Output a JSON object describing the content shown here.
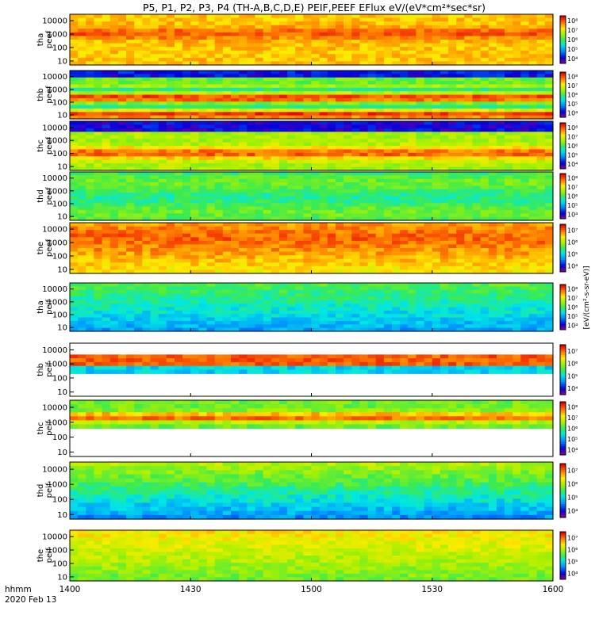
{
  "chart_data": {
    "type": "heatmap",
    "title": "P5, P1, P2, P3, P4 (TH-A,B,C,D,E) PEIF,PEEF EFlux eV/(eV*cm²*sec*sr)",
    "xlabel_lines": [
      "hhmm",
      "2020 Feb 13"
    ],
    "x_ticks": [
      "1400",
      "1430",
      "1500",
      "1530",
      "1600"
    ],
    "x_range_minutes": [
      0,
      120
    ],
    "y_ticks": [
      "10",
      "100",
      "1000",
      "10000"
    ],
    "y_scale": "log",
    "y_range_eV": [
      5,
      30000
    ],
    "colorbar_units": "[eV/(cm²-s-sr-eV)]",
    "panels": [
      {
        "name": "tha peef",
        "probe": "tha",
        "species": "peef",
        "colorbar_ticks": [
          "10⁴",
          "10⁵",
          "10⁶",
          "10⁷",
          "10⁸"
        ]
      },
      {
        "name": "thb peef",
        "probe": "thb",
        "species": "peef",
        "colorbar_ticks": [
          "10⁴",
          "10⁵",
          "10⁶",
          "10⁷",
          "10⁸"
        ]
      },
      {
        "name": "thc peef",
        "probe": "thc",
        "species": "peef",
        "colorbar_ticks": [
          "10⁴",
          "10⁵",
          "10⁶",
          "10⁷",
          "10⁸"
        ]
      },
      {
        "name": "thd peef",
        "probe": "thd",
        "species": "peef",
        "colorbar_ticks": [
          "10⁴",
          "10⁵",
          "10⁶",
          "10⁷",
          "10⁸"
        ]
      },
      {
        "name": "the peef",
        "probe": "the",
        "species": "peef",
        "colorbar_ticks": [
          "10⁴",
          "10⁵",
          "10⁶",
          "10⁷"
        ]
      },
      {
        "name": "tha peif",
        "probe": "tha",
        "species": "peif",
        "colorbar_ticks": [
          "10⁴",
          "10⁵",
          "10⁶",
          "10⁷",
          "10⁸"
        ]
      },
      {
        "name": "thb peif",
        "probe": "thb",
        "species": "peif",
        "colorbar_ticks": [
          "10⁴",
          "10⁵",
          "10⁶",
          "10⁷"
        ]
      },
      {
        "name": "thc peif",
        "probe": "thc",
        "species": "peif",
        "colorbar_ticks": [
          "10⁴",
          "10⁵",
          "10⁶",
          "10⁷",
          "10⁸"
        ]
      },
      {
        "name": "thd peif",
        "probe": "thd",
        "species": "peif",
        "colorbar_ticks": [
          "10⁴",
          "10⁵",
          "10⁶",
          "10⁷"
        ]
      },
      {
        "name": "the peif",
        "probe": "the",
        "species": "peif",
        "colorbar_ticks": [
          "10⁴",
          "10⁵",
          "10⁶",
          "10⁷"
        ]
      }
    ]
  }
}
